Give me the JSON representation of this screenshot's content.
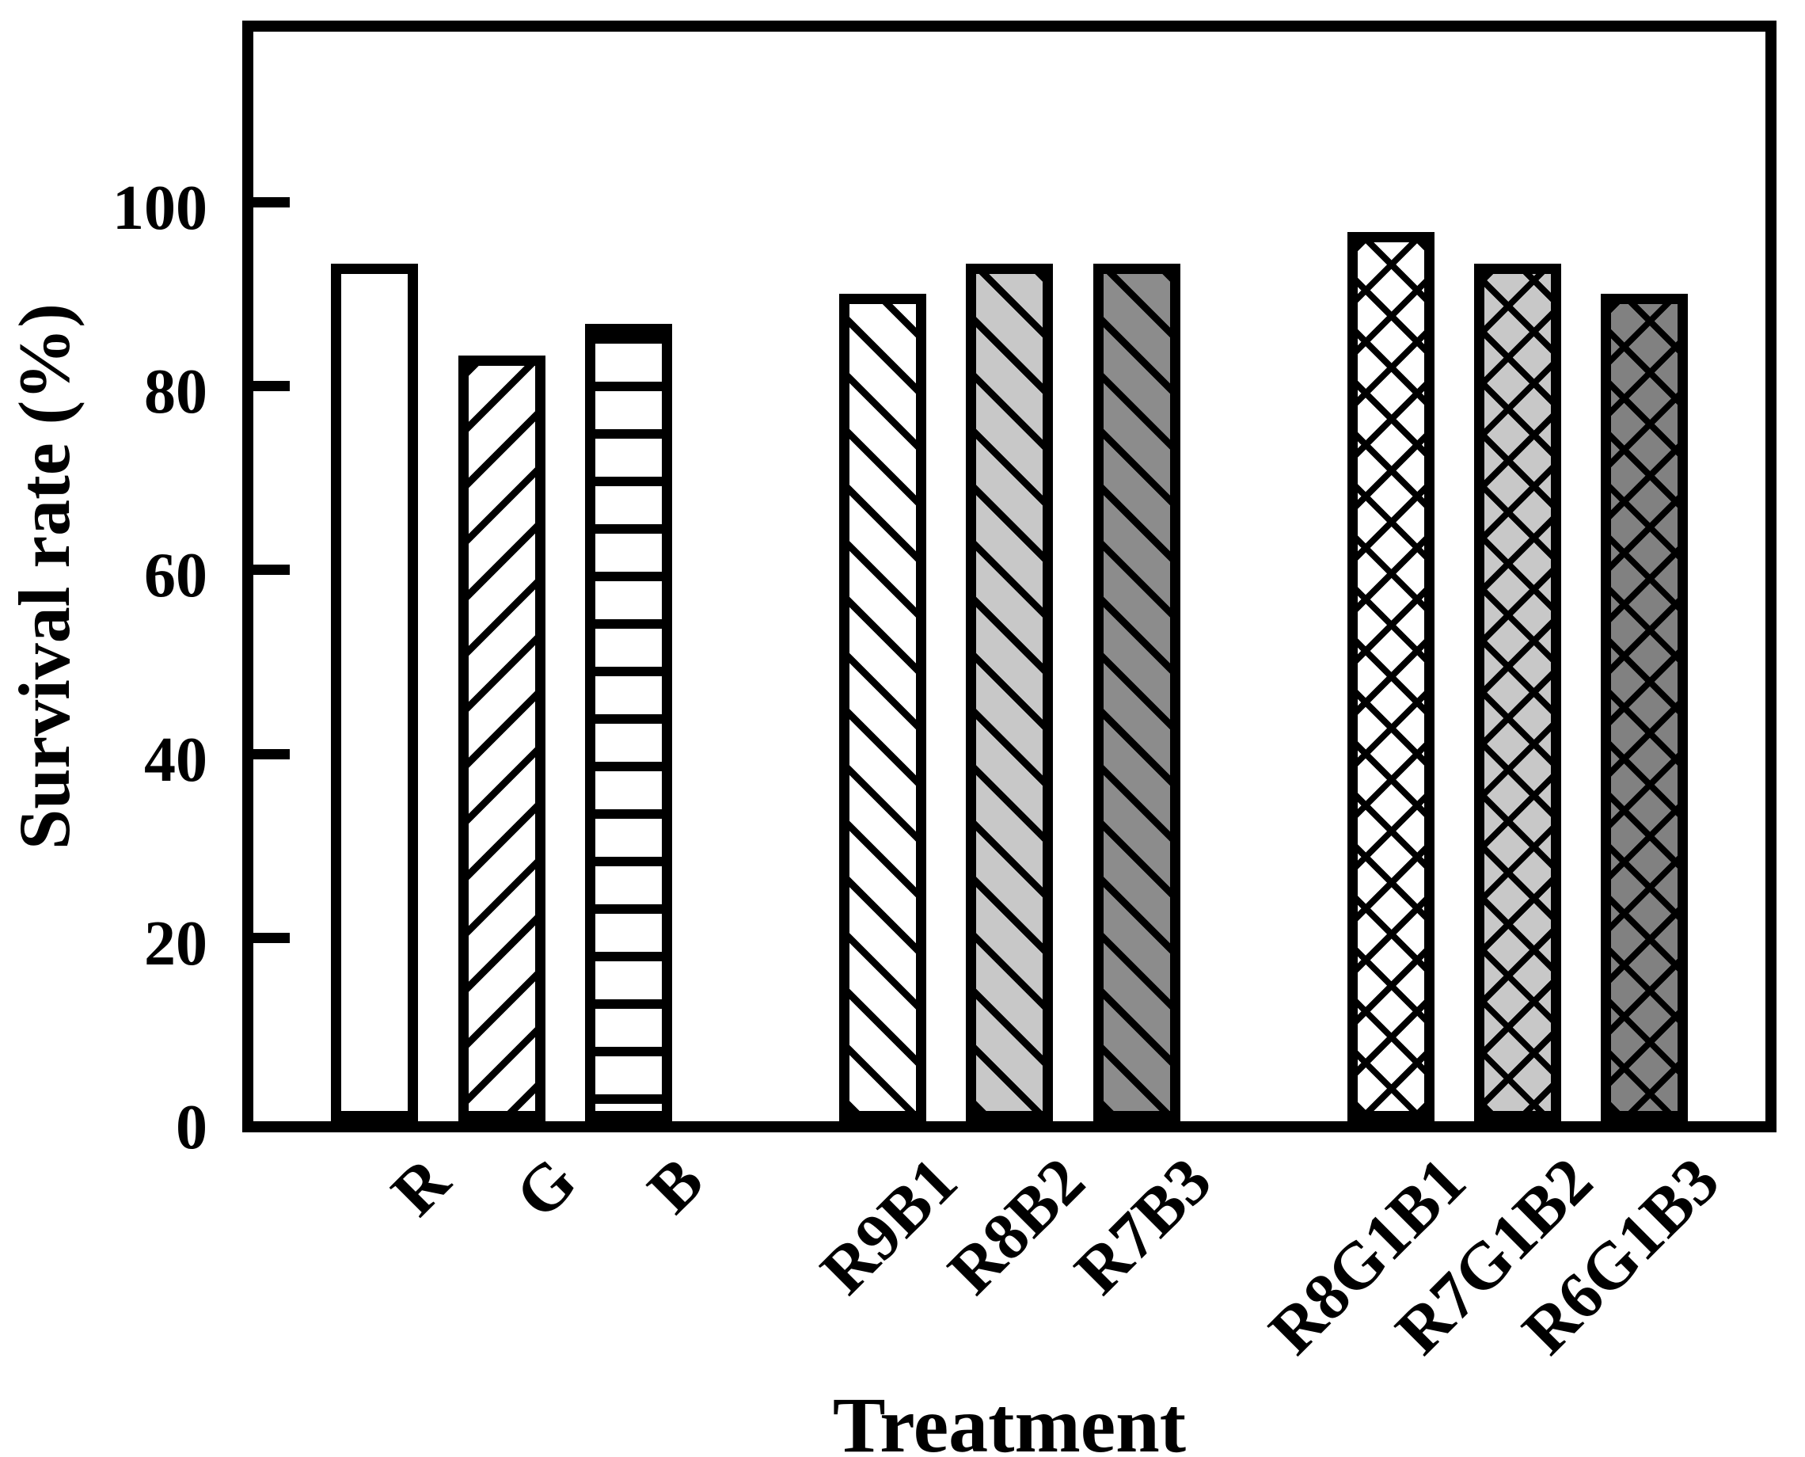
{
  "chart_data": {
    "type": "bar",
    "title": "",
    "xlabel": "Treatment",
    "ylabel": "Survival rate (%)",
    "ylim": [
      0,
      118
    ],
    "yticks": [
      0,
      20,
      40,
      60,
      80,
      100
    ],
    "grid": false,
    "legend": false,
    "categories": [
      "R",
      "G",
      "B",
      "R9B1",
      "R8B2",
      "R7B3",
      "R8G1B1",
      "R7G1B2",
      "R6G1B3"
    ],
    "values": [
      93.3,
      83.3,
      86.7,
      90,
      93.3,
      93.3,
      96.7,
      93.3,
      90
    ],
    "groups": [
      [
        "R",
        "G",
        "B"
      ],
      [
        "R9B1",
        "R8B2",
        "R7B3"
      ],
      [
        "R8G1B1",
        "R7G1B2",
        "R6G1B3"
      ]
    ],
    "bars": [
      {
        "label": "R",
        "value": 93.3,
        "fill": "#ffffff",
        "hatch": "none"
      },
      {
        "label": "G",
        "value": 83.3,
        "fill": "#ffffff",
        "hatch": "/"
      },
      {
        "label": "B",
        "value": 86.7,
        "fill": "#ffffff",
        "hatch": "-"
      },
      {
        "label": "R9B1",
        "value": 90.0,
        "fill": "#ffffff",
        "hatch": "\\"
      },
      {
        "label": "R8B2",
        "value": 93.3,
        "fill": "#c8c8c8",
        "hatch": "\\"
      },
      {
        "label": "R7B3",
        "value": 93.3,
        "fill": "#8c8c8c",
        "hatch": "\\"
      },
      {
        "label": "R8G1B1",
        "value": 96.7,
        "fill": "#ffffff",
        "hatch": "x"
      },
      {
        "label": "R7G1B2",
        "value": 93.3,
        "fill": "#c8c8c8",
        "hatch": "x"
      },
      {
        "label": "R6G1B3",
        "value": 90.0,
        "fill": "#818181",
        "hatch": "x"
      }
    ],
    "bar_outline": "#000000",
    "background": "#ffffff"
  }
}
